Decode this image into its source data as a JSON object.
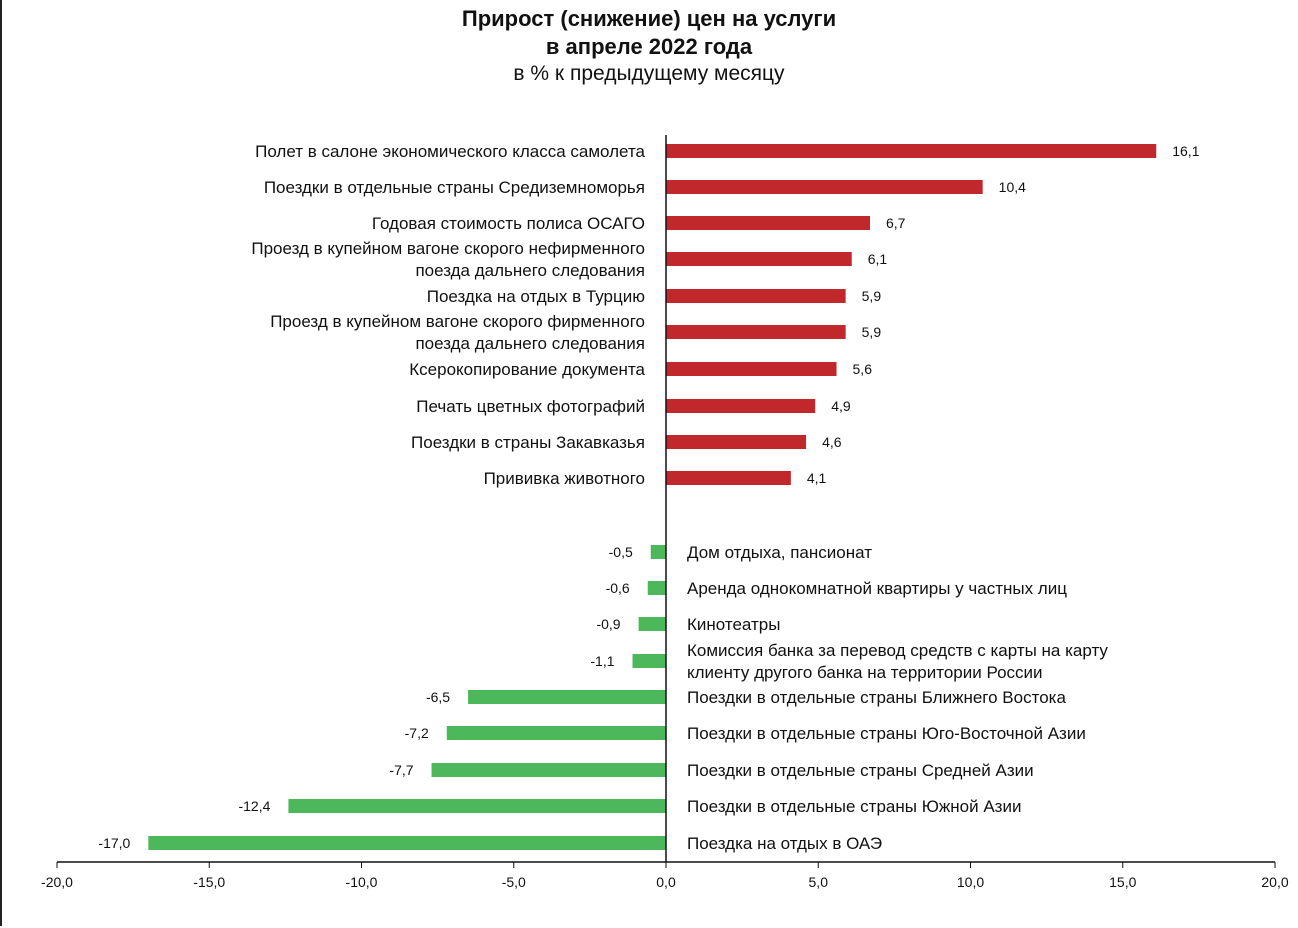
{
  "chart_data": {
    "type": "bar",
    "orientation": "horizontal",
    "title": "Прирост (снижение) цен на услуги",
    "title_line2": "в апреле 2022 года",
    "subtitle": "в % к предыдущему месяцу",
    "xlim": [
      -20,
      20
    ],
    "xticks": [
      "-20,0",
      "-15,0",
      "-10,0",
      "-5,0",
      "0,0",
      "5,0",
      "10,0",
      "15,0",
      "20,0"
    ],
    "grid": false,
    "colors": {
      "positive": "#c0282c",
      "negative": "#4db85b"
    },
    "positive": {
      "categories": [
        "Полет в салоне экономического класса самолета",
        "Поездки в отдельные страны Средиземноморья",
        "Годовая стоимость полиса ОСАГО",
        "Проезд в купейном вагоне скорого нефирменного\nпоезда дальнего следования",
        "Поездка на отдых в Турцию",
        "Проезд в купейном вагоне скорого фирменного\nпоезда дальнего следования",
        "Ксерокопирование документа",
        "Печать цветных фотографий",
        "Поездки в страны Закавказья",
        "Прививка животного"
      ],
      "values": [
        16.1,
        10.4,
        6.7,
        6.1,
        5.9,
        5.9,
        5.6,
        4.9,
        4.6,
        4.1
      ],
      "labels": [
        "16,1",
        "10,4",
        "6,7",
        "6,1",
        "5,9",
        "5,9",
        "5,6",
        "4,9",
        "4,6",
        "4,1"
      ]
    },
    "negative": {
      "categories": [
        "Дом отдыха, пансионат",
        "Аренда однокомнатной квартиры у частных лиц",
        "Кинотеатры",
        "Комиссия банка за перевод средств с карты на карту\nклиенту другого банка на территории России",
        "Поездки в отдельные страны Ближнего Востока",
        "Поездки в отдельные страны Юго-Восточной Азии",
        "Поездки в отдельные страны Средней Азии",
        "Поездки в отдельные страны Южной Азии",
        "Поездка на отдых в ОАЭ"
      ],
      "values": [
        -0.5,
        -0.6,
        -0.9,
        -1.1,
        -6.5,
        -7.2,
        -7.7,
        -12.4,
        -17.0
      ],
      "labels": [
        "-0,5",
        "-0,6",
        "-0,9",
        "-1,1",
        "-6,5",
        "-7,2",
        "-7,7",
        "-12,4",
        "-17,0"
      ]
    }
  }
}
